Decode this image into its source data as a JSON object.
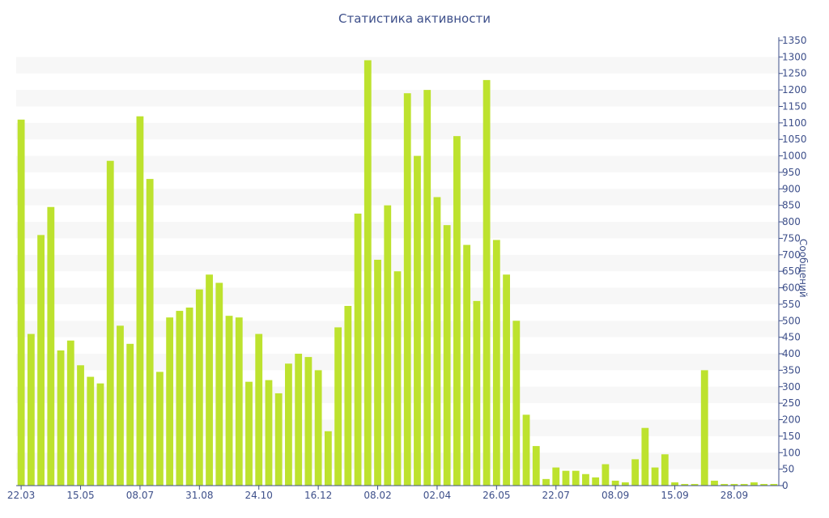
{
  "chart_data": {
    "type": "bar",
    "title": "Статистика активности",
    "xlabel": "",
    "ylabel": "Сообщений",
    "ylim": [
      0,
      1350
    ],
    "ytick_step": 50,
    "y_axis_side": "right",
    "grid": "alternating horizontal bands",
    "bar_color": "#bde22e",
    "band_color": "#f7f7f7",
    "axis_color": "#3d4f8a",
    "x_tick_labels": [
      {
        "index": 0,
        "label": "22.03"
      },
      {
        "index": 6,
        "label": "15.05"
      },
      {
        "index": 12,
        "label": "08.07"
      },
      {
        "index": 18,
        "label": "31.08"
      },
      {
        "index": 24,
        "label": "24.10"
      },
      {
        "index": 30,
        "label": "16.12"
      },
      {
        "index": 36,
        "label": "08.02"
      },
      {
        "index": 42,
        "label": "02.04"
      },
      {
        "index": 48,
        "label": "26.05"
      },
      {
        "index": 54,
        "label": "22.07"
      },
      {
        "index": 60,
        "label": "08.09"
      },
      {
        "index": 66,
        "label": "15.09"
      },
      {
        "index": 72,
        "label": "28.09"
      }
    ],
    "values": [
      1110,
      460,
      760,
      845,
      410,
      440,
      365,
      330,
      310,
      985,
      485,
      430,
      1120,
      930,
      345,
      510,
      530,
      540,
      595,
      640,
      615,
      515,
      510,
      315,
      460,
      320,
      280,
      370,
      400,
      390,
      350,
      165,
      480,
      545,
      825,
      1290,
      685,
      850,
      650,
      1190,
      1000,
      1200,
      875,
      790,
      1060,
      730,
      560,
      1230,
      745,
      640,
      500,
      215,
      120,
      20,
      55,
      45,
      45,
      35,
      25,
      65,
      15,
      10,
      80,
      175,
      55,
      95,
      10,
      5,
      5,
      350,
      15,
      5,
      5,
      5,
      10,
      5,
      5
    ]
  }
}
